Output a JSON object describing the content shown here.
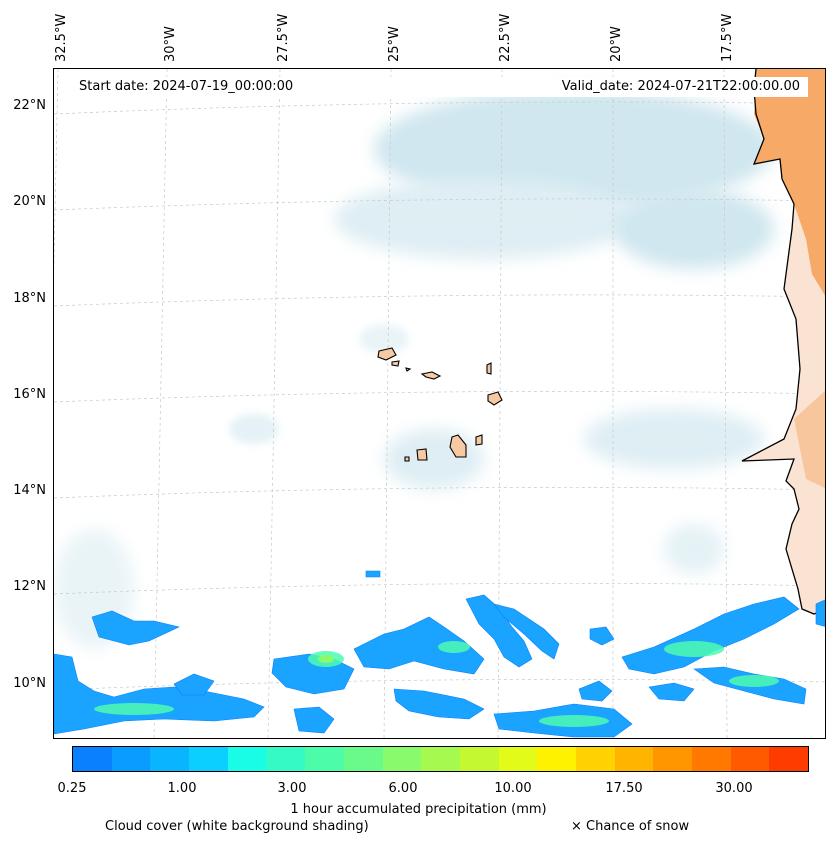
{
  "header": {
    "start_date": "Start date: 2024-07-19_00:00:00",
    "valid_date": "Valid_date: 2024-07-21T22:00:00.00"
  },
  "axes": {
    "longitude_labels": [
      "32.5°W",
      "30°W",
      "27.5°W",
      "25°W",
      "22.5°W",
      "20°W",
      "17.5°W"
    ],
    "latitude_labels": [
      "22°N",
      "20°N",
      "18°N",
      "16°N",
      "14°N",
      "12°N",
      "10°N"
    ]
  },
  "colorbar": {
    "label": "1 hour accumulated precipitation (mm)",
    "tick_labels": [
      "0.25",
      "1.00",
      "3.00",
      "6.00",
      "10.00",
      "17.50",
      "30.00"
    ],
    "colors": [
      "#0a80ff",
      "#0a9cff",
      "#0ab4ff",
      "#0acfff",
      "#19fde6",
      "#34fbc5",
      "#4dfca9",
      "#6afa8a",
      "#88fa6c",
      "#a6f94e",
      "#c4f932",
      "#e2fb19",
      "#fff200",
      "#ffd200",
      "#ffb400",
      "#ff9600",
      "#ff7800",
      "#ff5a00",
      "#ff3c00"
    ]
  },
  "legend": {
    "cloud_cover": "Cloud cover (white background shading)",
    "snow": "× Chance of snow"
  },
  "colors": {
    "land": "#f6a35c",
    "island": "#f7c9a3",
    "cloud": "#b9dbe6",
    "precip_light": "#1aa3ff",
    "precip_mid": "#4dfcb0"
  }
}
